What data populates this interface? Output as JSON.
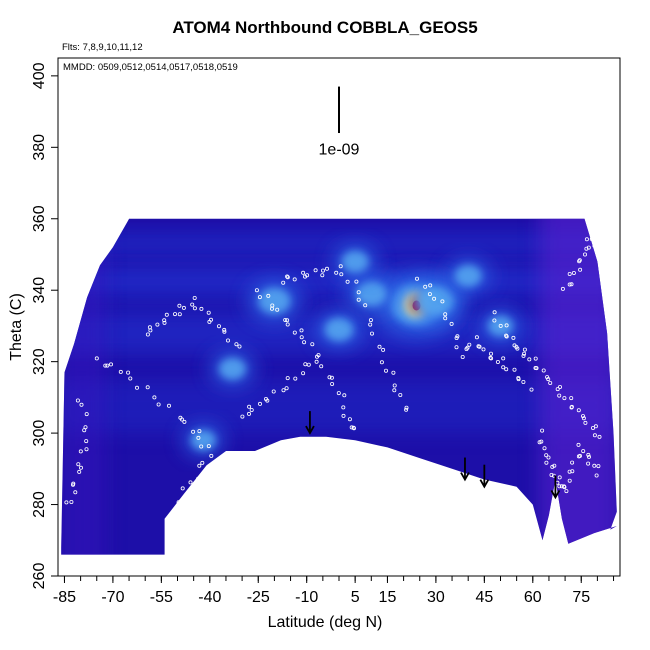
{
  "chart_data": {
    "type": "heatmap",
    "title": "ATOM4 Northbound COBBLA_GEOS5",
    "flights_note": "Flts: 7,8,9,10,11,12",
    "dates_note": "MMDD: 0509,0512,0514,0517,0518,0519",
    "xlabel": "Latitude (deg N)",
    "ylabel": "Theta (C)",
    "xlim": [
      -87,
      87
    ],
    "ylim": [
      260,
      405
    ],
    "x_ticks": [
      -85,
      -70,
      -55,
      -40,
      -25,
      -10,
      5,
      15,
      30,
      45,
      60,
      75
    ],
    "y_ticks": [
      260,
      280,
      300,
      320,
      340,
      360,
      380,
      400
    ],
    "scale_label": "1e-09",
    "grid": false,
    "colormap": [
      "#1d0fa8",
      "#2038d8",
      "#2f6be8",
      "#57a8f0",
      "#fff8a0",
      "#ff9a2a",
      "#d40f0f"
    ],
    "domain_top": 360,
    "domain_left_edge": [
      [
        -86,
        268
      ],
      [
        -85,
        317
      ],
      [
        -82,
        325
      ],
      [
        -78,
        338
      ],
      [
        -74,
        347
      ],
      [
        -70,
        352
      ],
      [
        -65,
        360
      ]
    ],
    "domain_right_edge": [
      [
        76,
        360
      ],
      [
        80,
        348
      ],
      [
        83,
        328
      ],
      [
        85,
        300
      ],
      [
        86,
        278
      ],
      [
        84,
        273
      ]
    ],
    "surface": [
      [
        -86,
        266
      ],
      [
        -54,
        266
      ],
      [
        -54,
        276
      ],
      [
        -48,
        283
      ],
      [
        -41,
        291
      ],
      [
        -35,
        295
      ],
      [
        -26,
        295
      ],
      [
        -18,
        298
      ],
      [
        -12,
        299
      ],
      [
        -4,
        299
      ],
      [
        5,
        298
      ],
      [
        15,
        296
      ],
      [
        25,
        293
      ],
      [
        35,
        290
      ],
      [
        45,
        287
      ],
      [
        55,
        285
      ],
      [
        60,
        280
      ],
      [
        63,
        270
      ],
      [
        65,
        277
      ],
      [
        67,
        287
      ],
      [
        69,
        276
      ],
      [
        71,
        269
      ],
      [
        79,
        272
      ],
      [
        86,
        274
      ]
    ],
    "hotspots": [
      {
        "lat": 24,
        "theta": 336,
        "value": 1.0
      },
      {
        "lat": 30,
        "theta": 337,
        "value": 0.55
      },
      {
        "lat": -20,
        "theta": 337,
        "value": 0.45
      },
      {
        "lat": 0,
        "theta": 329,
        "value": 0.35
      },
      {
        "lat": 10,
        "theta": 339,
        "value": 0.4
      },
      {
        "lat": -33,
        "theta": 318,
        "value": 0.3
      },
      {
        "lat": 40,
        "theta": 344,
        "value": 0.3
      },
      {
        "lat": -42,
        "theta": 298,
        "value": 0.25
      },
      {
        "lat": 5,
        "theta": 348,
        "value": 0.3
      },
      {
        "lat": 50,
        "theta": 330,
        "value": 0.25
      }
    ],
    "arrows": [
      {
        "lat": -9,
        "theta": 300
      },
      {
        "lat": 39,
        "theta": 287
      },
      {
        "lat": 45,
        "theta": 285
      },
      {
        "lat": 67,
        "theta": 282
      }
    ],
    "observation_tracks": [
      [
        [
          -75,
          320
        ],
        [
          -68,
          318
        ],
        [
          -60,
          312
        ],
        [
          -50,
          305
        ],
        [
          -44,
          300
        ],
        [
          -40,
          294
        ],
        [
          -46,
          286
        ],
        [
          -52,
          278
        ]
      ],
      [
        [
          -25,
          340
        ],
        [
          -20,
          335
        ],
        [
          -15,
          330
        ],
        [
          -10,
          326
        ],
        [
          -5,
          318
        ],
        [
          0,
          312
        ],
        [
          3,
          303
        ],
        [
          6,
          300
        ]
      ],
      [
        [
          -18,
          343
        ],
        [
          -12,
          344
        ],
        [
          -6,
          345
        ],
        [
          0,
          346
        ],
        [
          6,
          340
        ],
        [
          10,
          330
        ],
        [
          14,
          320
        ],
        [
          18,
          312
        ],
        [
          22,
          304
        ]
      ],
      [
        [
          25,
          343
        ],
        [
          30,
          338
        ],
        [
          35,
          330
        ],
        [
          38,
          322
        ],
        [
          42,
          326
        ],
        [
          46,
          322
        ],
        [
          50,
          320
        ],
        [
          55,
          316
        ],
        [
          60,
          312
        ]
      ],
      [
        [
          48,
          333
        ],
        [
          52,
          328
        ],
        [
          55,
          324
        ],
        [
          58,
          322
        ],
        [
          62,
          318
        ],
        [
          66,
          314
        ],
        [
          70,
          310
        ],
        [
          74,
          306
        ],
        [
          78,
          302
        ],
        [
          82,
          298
        ]
      ],
      [
        [
          62,
          300
        ],
        [
          64,
          294
        ],
        [
          66,
          290
        ],
        [
          68,
          286
        ],
        [
          70,
          284
        ],
        [
          72,
          290
        ],
        [
          75,
          296
        ],
        [
          78,
          292
        ],
        [
          81,
          288
        ]
      ],
      [
        [
          70,
          340
        ],
        [
          73,
          345
        ],
        [
          76,
          350
        ],
        [
          78,
          355
        ],
        [
          80,
          352
        ]
      ],
      [
        [
          -60,
          328
        ],
        [
          -55,
          331
        ],
        [
          -50,
          334
        ],
        [
          -45,
          337
        ],
        [
          -40,
          332
        ],
        [
          -35,
          328
        ],
        [
          -30,
          322
        ]
      ],
      [
        [
          -80,
          310
        ],
        [
          -78,
          300
        ],
        [
          -80,
          292
        ],
        [
          -82,
          285
        ],
        [
          -84,
          278
        ]
      ],
      [
        [
          -30,
          305
        ],
        [
          -25,
          308
        ],
        [
          -18,
          312
        ],
        [
          -12,
          317
        ],
        [
          -5,
          323
        ]
      ]
    ]
  }
}
